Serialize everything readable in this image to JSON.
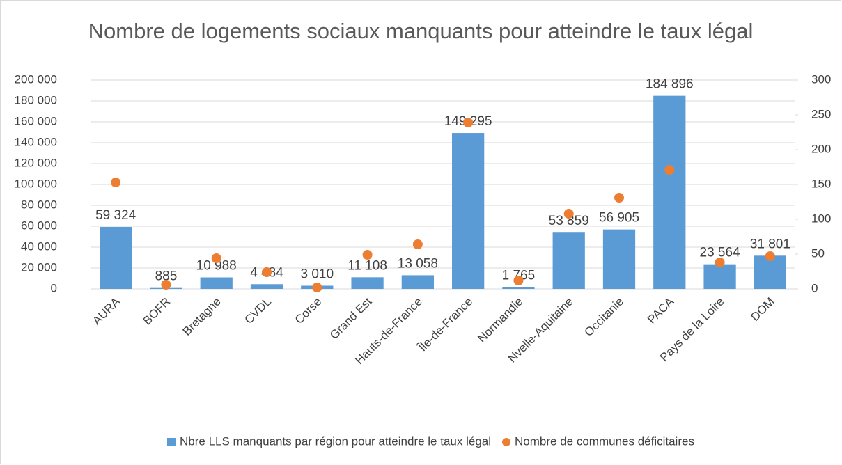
{
  "chart_data": {
    "type": "bar",
    "title": "Nombre de logements sociaux manquants pour atteindre le taux légal",
    "categories": [
      "AURA",
      "BOFR",
      "Bretagne",
      "CVDL",
      "Corse",
      "Grand Est",
      "Hauts-de-France",
      "Île-de-France",
      "Normandie",
      "Nvelle-Aquitaine",
      "Occitanie",
      "PACA",
      "Pays de la Loire",
      "DOM"
    ],
    "series": [
      {
        "name": "Nbre LLS manquants par région pour atteindre le taux légal",
        "type": "bar",
        "color": "#5b9bd5",
        "values": [
          59324,
          885,
          10988,
          4484,
          3010,
          11108,
          13058,
          149295,
          1765,
          53859,
          56905,
          184896,
          23564,
          31801
        ],
        "value_labels": [
          "59 324",
          "885",
          "10 988",
          "4 484",
          "3 010",
          "11 108",
          "13 058",
          "149 295",
          "1 765",
          "53 859",
          "56 905",
          "184 896",
          "23 564",
          "31 801"
        ]
      },
      {
        "name": "Nombre de communes déficitaires",
        "type": "scatter",
        "axis": "y2",
        "color": "#ed7d31",
        "values": [
          153,
          6,
          44,
          24,
          2,
          49,
          64,
          239,
          12,
          108,
          131,
          171,
          38,
          47
        ]
      }
    ],
    "ylim": [
      0,
      200000
    ],
    "yticks": [
      0,
      {
        "value": 20000,
        "label": "20 000"
      },
      {
        "value": 40000,
        "label": "40 000"
      },
      {
        "value": 60000,
        "label": "60 000"
      },
      {
        "value": 80000,
        "label": "80 000"
      },
      {
        "value": 100000,
        "label": "100 000"
      },
      {
        "value": 120000,
        "label": "120 000"
      },
      {
        "value": 140000,
        "label": "140 000"
      },
      {
        "value": 160000,
        "label": "160 000"
      },
      {
        "value": 180000,
        "label": "180 000"
      },
      {
        "value": 200000,
        "label": "200 000"
      }
    ],
    "y2lim": [
      0,
      300
    ],
    "y2ticks": [
      0,
      50,
      100,
      150,
      200,
      250,
      300
    ],
    "grid": true,
    "legend": "bottom"
  }
}
